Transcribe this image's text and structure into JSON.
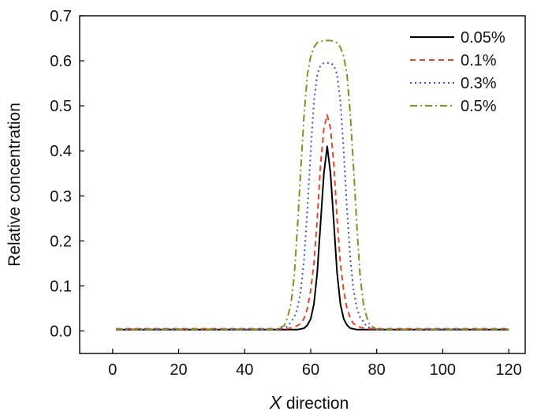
{
  "chart_data": {
    "type": "line",
    "xlabel_var": "X",
    "xlabel_rest": " direction",
    "ylabel": "Relative concentration",
    "xlim": [
      -10,
      125
    ],
    "ylim": [
      -0.05,
      0.7
    ],
    "xticks": [
      0,
      20,
      40,
      60,
      80,
      100,
      120
    ],
    "yticks": [
      0.0,
      0.1,
      0.2,
      0.3,
      0.4,
      0.5,
      0.6,
      0.7
    ],
    "xtick_labels": [
      "0",
      "20",
      "40",
      "60",
      "80",
      "100",
      "120"
    ],
    "ytick_labels": [
      "0.0",
      "0.1",
      "0.2",
      "0.3",
      "0.4",
      "0.5",
      "0.6",
      "0.7"
    ],
    "legend_position": "top-right",
    "grid": false,
    "series": [
      {
        "name": "0.05%",
        "color": "#000000",
        "dash": "solid",
        "x": [
          1,
          56,
          58,
          59,
          60,
          61,
          62,
          63,
          64,
          65,
          66,
          67,
          68,
          69,
          70,
          71,
          72,
          74,
          120
        ],
        "y": [
          0.003,
          0.003,
          0.006,
          0.013,
          0.027,
          0.06,
          0.13,
          0.24,
          0.35,
          0.41,
          0.35,
          0.24,
          0.13,
          0.06,
          0.027,
          0.013,
          0.006,
          0.003,
          0.003
        ]
      },
      {
        "name": "0.1%",
        "color": "#e8452a",
        "dash": "dash",
        "x": [
          1,
          53,
          55,
          57,
          58,
          59,
          60,
          61,
          62,
          63,
          64,
          65,
          66,
          67,
          68,
          69,
          70,
          71,
          72,
          73,
          75,
          77,
          120
        ],
        "y": [
          0.005,
          0.005,
          0.008,
          0.016,
          0.028,
          0.05,
          0.09,
          0.15,
          0.25,
          0.37,
          0.45,
          0.48,
          0.45,
          0.37,
          0.25,
          0.15,
          0.09,
          0.05,
          0.028,
          0.016,
          0.008,
          0.005,
          0.005
        ]
      },
      {
        "name": "0.3%",
        "color": "#3b4fc4",
        "dash": "dot",
        "x": [
          1,
          51,
          53,
          55,
          56,
          57,
          58,
          59,
          60,
          61,
          62,
          63,
          64,
          65,
          66,
          67,
          68,
          69,
          70,
          71,
          72,
          73,
          74,
          75,
          77,
          79,
          120
        ],
        "y": [
          0.004,
          0.004,
          0.01,
          0.03,
          0.05,
          0.09,
          0.16,
          0.27,
          0.4,
          0.51,
          0.57,
          0.59,
          0.595,
          0.595,
          0.595,
          0.59,
          0.57,
          0.51,
          0.4,
          0.27,
          0.16,
          0.09,
          0.05,
          0.03,
          0.01,
          0.004,
          0.004
        ]
      },
      {
        "name": "0.5%",
        "color": "#8b8b1e",
        "dash": "dashdot",
        "x": [
          1,
          50,
          52,
          53,
          54,
          55,
          56,
          57,
          58,
          59,
          60,
          61,
          62,
          63,
          64,
          65,
          66,
          67,
          68,
          69,
          70,
          71,
          72,
          73,
          74,
          75,
          76,
          77,
          78,
          80,
          120
        ],
        "y": [
          0.004,
          0.004,
          0.012,
          0.03,
          0.06,
          0.12,
          0.23,
          0.36,
          0.48,
          0.57,
          0.61,
          0.63,
          0.64,
          0.643,
          0.645,
          0.645,
          0.645,
          0.643,
          0.64,
          0.63,
          0.61,
          0.57,
          0.48,
          0.36,
          0.23,
          0.12,
          0.06,
          0.03,
          0.012,
          0.004,
          0.004
        ]
      }
    ]
  }
}
